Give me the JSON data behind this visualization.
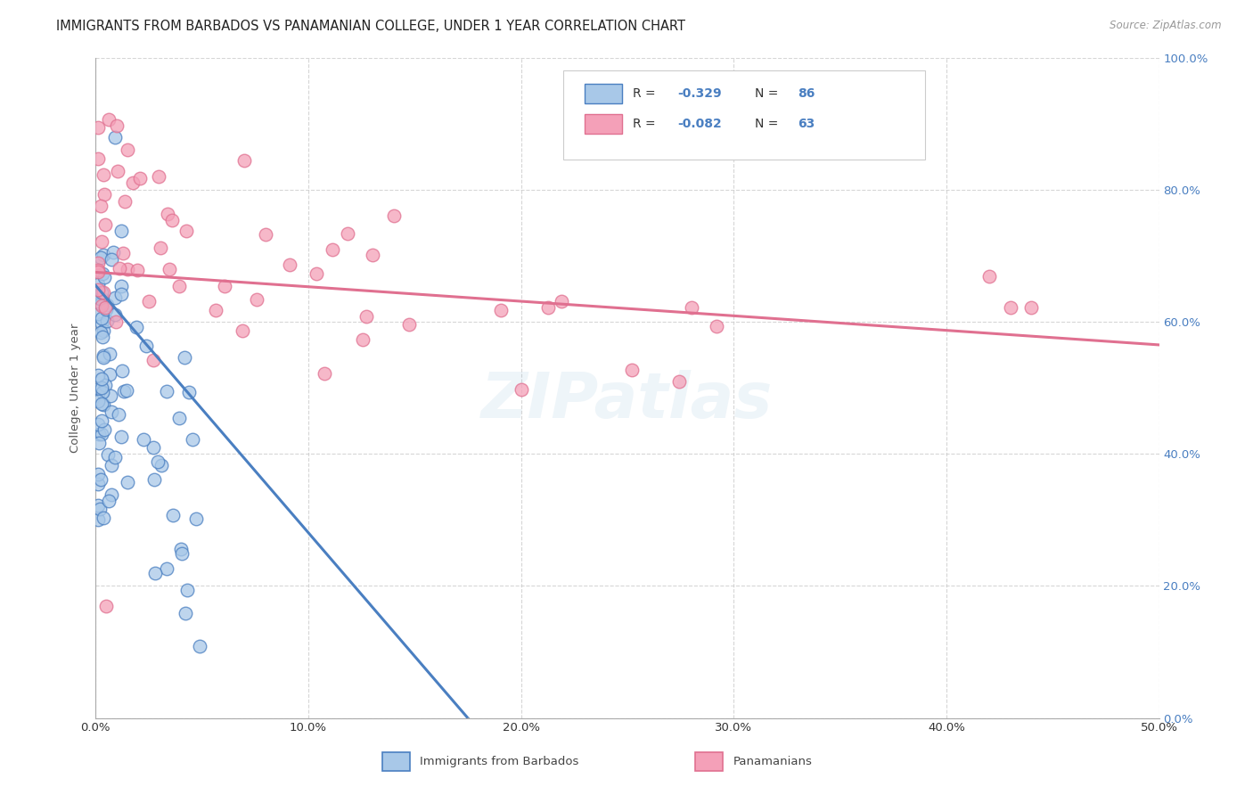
{
  "title": "IMMIGRANTS FROM BARBADOS VS PANAMANIAN COLLEGE, UNDER 1 YEAR CORRELATION CHART",
  "source": "Source: ZipAtlas.com",
  "ylabel": "College, Under 1 year",
  "xlim": [
    0.0,
    0.5
  ],
  "ylim": [
    0.0,
    1.0
  ],
  "blue_R": "-0.329",
  "blue_N": "86",
  "pink_R": "-0.082",
  "pink_N": "63",
  "blue_color": "#4a7fc1",
  "pink_color": "#e07090",
  "blue_fill": "#a8c8e8",
  "pink_fill": "#f4a0b8",
  "right_tick_color": "#4a7fc1",
  "bottom_tick_color": "#333333",
  "background_color": "#ffffff",
  "grid_color": "#cccccc",
  "watermark_text": "ZIPatlas",
  "watermark_alpha": 0.12,
  "watermark_fontsize": 52,
  "watermark_color": "#7aadce",
  "legend_box_color": "#dddddd",
  "blue_line_x0": 0.0,
  "blue_line_y0": 0.655,
  "blue_line_x1": 0.175,
  "blue_line_y1": 0.0,
  "pink_line_x0": 0.0,
  "pink_line_y0": 0.675,
  "pink_line_x1": 0.5,
  "pink_line_y1": 0.565
}
